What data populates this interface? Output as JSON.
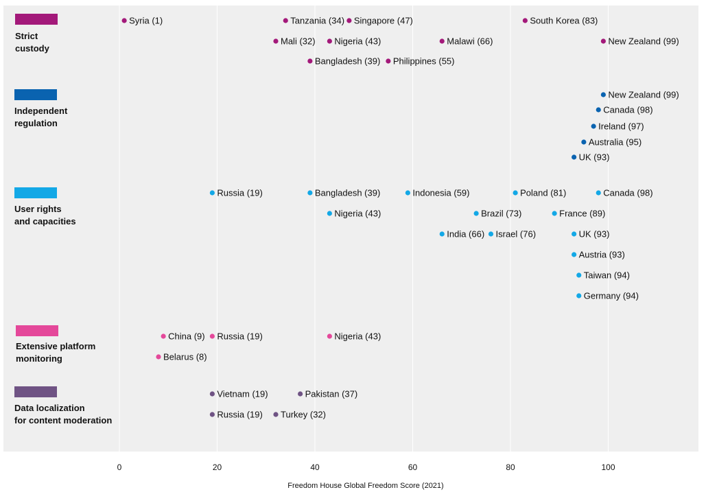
{
  "chart_data": {
    "type": "scatter",
    "xlabel": "Freedom House Global Freedom Score (2021)",
    "xlim": [
      0,
      110
    ],
    "xticks": [
      0,
      20,
      40,
      60,
      80,
      100
    ],
    "grid": "vertical",
    "categories": [
      {
        "name_lines": [
          "Strict",
          "custody"
        ],
        "color": "#a3197a",
        "rows": [
          [
            {
              "label": "Syria (1)",
              "x": 1
            },
            {
              "label": "Tanzania (34)",
              "x": 34
            },
            {
              "label": "Singapore (47)",
              "x": 47
            },
            {
              "label": "South Korea (83)",
              "x": 83
            }
          ],
          [
            {
              "label": "Mali (32)",
              "x": 32
            },
            {
              "label": "Nigeria (43)",
              "x": 43
            },
            {
              "label": "Malawi (66)",
              "x": 66
            },
            {
              "label": "New Zealand (99)",
              "x": 99
            }
          ],
          [
            {
              "label": "Bangladesh (39)",
              "x": 39
            },
            {
              "label": "Philippines (55)",
              "x": 55
            }
          ]
        ]
      },
      {
        "name_lines": [
          "Independent",
          "regulation"
        ],
        "color": "#0a63b0",
        "rows": [
          [
            {
              "label": "New Zealand (99)",
              "x": 99
            }
          ],
          [
            {
              "label": "Canada (98)",
              "x": 98
            }
          ],
          [
            {
              "label": "Ireland (97)",
              "x": 97
            }
          ],
          [
            {
              "label": "Australia (95)",
              "x": 95
            }
          ],
          [
            {
              "label": "UK (93)",
              "x": 93
            }
          ]
        ]
      },
      {
        "name_lines": [
          "User rights",
          "and capacities"
        ],
        "color": "#13a8e6",
        "rows": [
          [
            {
              "label": "Russia (19)",
              "x": 19
            },
            {
              "label": "Bangladesh (39)",
              "x": 39
            },
            {
              "label": "Indonesia (59)",
              "x": 59
            },
            {
              "label": "Poland (81)",
              "x": 81
            },
            {
              "label": "Canada (98)",
              "x": 98
            }
          ],
          [
            {
              "label": "Nigeria (43)",
              "x": 43
            },
            {
              "label": "Brazil (73)",
              "x": 73
            },
            {
              "label": "France (89)",
              "x": 89
            }
          ],
          [
            {
              "label": "India (66)",
              "x": 66
            },
            {
              "label": "Israel (76)",
              "x": 76
            },
            {
              "label": "UK (93)",
              "x": 93
            }
          ],
          [
            {
              "label": "Austria (93)",
              "x": 93
            }
          ],
          [
            {
              "label": "Taiwan (94)",
              "x": 94
            }
          ],
          [
            {
              "label": "Germany (94)",
              "x": 94
            }
          ]
        ]
      },
      {
        "name_lines": [
          "Extensive platform",
          "monitoring"
        ],
        "color": "#e4489a",
        "rows": [
          [
            {
              "label": "China (9)",
              "x": 9
            },
            {
              "label": "Russia (19)",
              "x": 19
            },
            {
              "label": "Nigeria (43)",
              "x": 43
            }
          ],
          [
            {
              "label": "Belarus (8)",
              "x": 8
            }
          ]
        ]
      },
      {
        "name_lines": [
          "Data localization",
          "for content moderation"
        ],
        "color": "#6f5384",
        "rows": [
          [
            {
              "label": "Vietnam (19)",
              "x": 19
            },
            {
              "label": "Pakistan (37)",
              "x": 37
            }
          ],
          [
            {
              "label": "Russia (19)",
              "x": 19
            },
            {
              "label": "Turkey (32)",
              "x": 32
            }
          ]
        ]
      }
    ]
  }
}
